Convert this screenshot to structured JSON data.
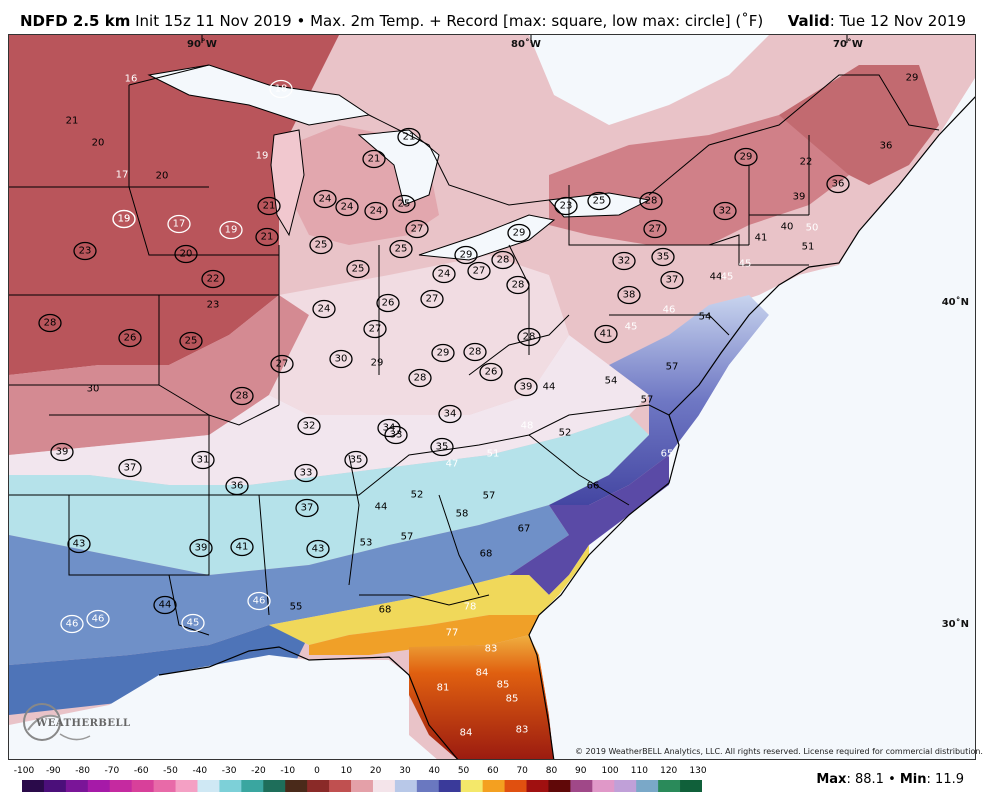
{
  "header": {
    "product": "NDFD 2.5 km",
    "init": "Init 15z 11 Nov 2019",
    "bullet": "•",
    "field": "Max. 2m Temp. + Record [max: square, low max: circle] (˚F)",
    "valid_label": "Valid",
    "valid_value": ": Tue 12 Nov 2019"
  },
  "map": {
    "lon_labels": [
      "90˚W",
      "80˚W",
      "70˚W"
    ],
    "lat_labels": [
      "40˚N",
      "30˚N"
    ],
    "copyright": "© 2019 WeatherBELL Analytics, LLC. All rights reserved. License required for commercial distribution.",
    "logo": "WEATHERBELL",
    "stations": [
      {
        "v": "16",
        "ring": false,
        "white": true
      },
      {
        "v": "18",
        "ring": true,
        "white": true
      },
      {
        "v": "21",
        "ring": false,
        "white": false
      },
      {
        "v": "20",
        "ring": false,
        "white": false
      },
      {
        "v": "17",
        "ring": false,
        "white": true
      },
      {
        "v": "20",
        "ring": false,
        "white": false
      },
      {
        "v": "19",
        "ring": true,
        "white": true
      },
      {
        "v": "17",
        "ring": true,
        "white": true
      },
      {
        "v": "19",
        "ring": true,
        "white": true
      },
      {
        "v": "19",
        "ring": true,
        "white": true
      },
      {
        "v": "21",
        "ring": true,
        "white": false
      },
      {
        "v": "21",
        "ring": true,
        "white": false
      },
      {
        "v": "19",
        "ring": false,
        "white": true
      },
      {
        "v": "21",
        "ring": true,
        "white": false
      },
      {
        "v": "21",
        "ring": true,
        "white": false
      },
      {
        "v": "23",
        "ring": true,
        "white": false
      },
      {
        "v": "20",
        "ring": true,
        "white": false
      },
      {
        "v": "22",
        "ring": true,
        "white": false
      },
      {
        "v": "23",
        "ring": false,
        "white": false
      },
      {
        "v": "24",
        "ring": true,
        "white": false
      },
      {
        "v": "24",
        "ring": true,
        "white": false
      },
      {
        "v": "24",
        "ring": true,
        "white": false
      },
      {
        "v": "25",
        "ring": true,
        "white": false
      },
      {
        "v": "27",
        "ring": true,
        "white": false
      },
      {
        "v": "25",
        "ring": true,
        "white": false
      },
      {
        "v": "25",
        "ring": true,
        "white": false
      },
      {
        "v": "25",
        "ring": true,
        "white": false
      },
      {
        "v": "24",
        "ring": true,
        "white": false
      },
      {
        "v": "29",
        "ring": true,
        "white": false
      },
      {
        "v": "27",
        "ring": true,
        "white": false
      },
      {
        "v": "28",
        "ring": true,
        "white": false
      },
      {
        "v": "29",
        "ring": true,
        "white": false
      },
      {
        "v": "23",
        "ring": true,
        "white": false
      },
      {
        "v": "25",
        "ring": true,
        "white": false
      },
      {
        "v": "28",
        "ring": true,
        "white": false
      },
      {
        "v": "27",
        "ring": true,
        "white": false
      },
      {
        "v": "29",
        "ring": true,
        "white": false
      },
      {
        "v": "32",
        "ring": true,
        "white": false
      },
      {
        "v": "22",
        "ring": false,
        "white": false
      },
      {
        "v": "29",
        "ring": false,
        "white": false
      },
      {
        "v": "36",
        "ring": false,
        "white": false
      },
      {
        "v": "39",
        "ring": false,
        "white": false
      },
      {
        "v": "36",
        "ring": true,
        "white": false
      },
      {
        "v": "40",
        "ring": false,
        "white": false
      },
      {
        "v": "41",
        "ring": false,
        "white": false
      },
      {
        "v": "50",
        "ring": false,
        "white": true
      },
      {
        "v": "51",
        "ring": false,
        "white": false
      },
      {
        "v": "32",
        "ring": true,
        "white": false
      },
      {
        "v": "35",
        "ring": true,
        "white": false
      },
      {
        "v": "37",
        "ring": true,
        "white": false
      },
      {
        "v": "44",
        "ring": false,
        "white": false
      },
      {
        "v": "45",
        "ring": false,
        "white": true
      },
      {
        "v": "45",
        "ring": false,
        "white": true
      },
      {
        "v": "38",
        "ring": true,
        "white": false
      },
      {
        "v": "28",
        "ring": true,
        "white": false
      },
      {
        "v": "28",
        "ring": true,
        "white": false
      },
      {
        "v": "26",
        "ring": true,
        "white": false
      },
      {
        "v": "25",
        "ring": true,
        "white": false
      },
      {
        "v": "24",
        "ring": true,
        "white": false
      },
      {
        "v": "26",
        "ring": true,
        "white": false
      },
      {
        "v": "27",
        "ring": true,
        "white": false
      },
      {
        "v": "27",
        "ring": true,
        "white": false
      },
      {
        "v": "28",
        "ring": true,
        "white": false
      },
      {
        "v": "41",
        "ring": true,
        "white": false
      },
      {
        "v": "45",
        "ring": false,
        "white": true
      },
      {
        "v": "46",
        "ring": false,
        "white": true
      },
      {
        "v": "54",
        "ring": false,
        "white": false
      },
      {
        "v": "27",
        "ring": true,
        "white": false
      },
      {
        "v": "30",
        "ring": true,
        "white": false
      },
      {
        "v": "29",
        "ring": false,
        "white": false
      },
      {
        "v": "28",
        "ring": true,
        "white": false
      },
      {
        "v": "29",
        "ring": true,
        "white": false
      },
      {
        "v": "28",
        "ring": true,
        "white": false
      },
      {
        "v": "26",
        "ring": true,
        "white": false
      },
      {
        "v": "39",
        "ring": true,
        "white": false
      },
      {
        "v": "44",
        "ring": false,
        "white": false
      },
      {
        "v": "54",
        "ring": false,
        "white": false
      },
      {
        "v": "57",
        "ring": false,
        "white": false
      },
      {
        "v": "57",
        "ring": false,
        "white": false
      },
      {
        "v": "30",
        "ring": false,
        "white": false
      },
      {
        "v": "28",
        "ring": true,
        "white": false
      },
      {
        "v": "32",
        "ring": true,
        "white": false
      },
      {
        "v": "34",
        "ring": true,
        "white": false
      },
      {
        "v": "33",
        "ring": true,
        "white": false
      },
      {
        "v": "34",
        "ring": true,
        "white": false
      },
      {
        "v": "35",
        "ring": true,
        "white": false
      },
      {
        "v": "48",
        "ring": false,
        "white": true
      },
      {
        "v": "52",
        "ring": false,
        "white": false
      },
      {
        "v": "51",
        "ring": false,
        "white": true
      },
      {
        "v": "47",
        "ring": false,
        "white": true
      },
      {
        "v": "65",
        "ring": false,
        "white": true
      },
      {
        "v": "39",
        "ring": true,
        "white": false
      },
      {
        "v": "37",
        "ring": true,
        "white": false
      },
      {
        "v": "31",
        "ring": true,
        "white": false
      },
      {
        "v": "33",
        "ring": true,
        "white": false
      },
      {
        "v": "35",
        "ring": true,
        "white": false
      },
      {
        "v": "36",
        "ring": true,
        "white": false
      },
      {
        "v": "37",
        "ring": true,
        "white": false
      },
      {
        "v": "44",
        "ring": false,
        "white": false
      },
      {
        "v": "52",
        "ring": false,
        "white": false
      },
      {
        "v": "57",
        "ring": false,
        "white": false
      },
      {
        "v": "58",
        "ring": false,
        "white": false
      },
      {
        "v": "66",
        "ring": false,
        "white": false
      },
      {
        "v": "57",
        "ring": false,
        "white": false
      },
      {
        "v": "67",
        "ring": false,
        "white": false
      },
      {
        "v": "43",
        "ring": true,
        "white": false
      },
      {
        "v": "39",
        "ring": true,
        "white": false
      },
      {
        "v": "41",
        "ring": true,
        "white": false
      },
      {
        "v": "43",
        "ring": true,
        "white": false
      },
      {
        "v": "53",
        "ring": false,
        "white": false
      },
      {
        "v": "68",
        "ring": false,
        "white": false
      },
      {
        "v": "44",
        "ring": true,
        "white": false
      },
      {
        "v": "46",
        "ring": true,
        "white": true
      },
      {
        "v": "55",
        "ring": false,
        "white": false
      },
      {
        "v": "68",
        "ring": false,
        "white": false
      },
      {
        "v": "78",
        "ring": false,
        "white": true
      },
      {
        "v": "46",
        "ring": true,
        "white": true
      },
      {
        "v": "46",
        "ring": true,
        "white": true
      },
      {
        "v": "45",
        "ring": true,
        "white": true
      },
      {
        "v": "77",
        "ring": false,
        "white": true
      },
      {
        "v": "83",
        "ring": false,
        "white": true
      },
      {
        "v": "84",
        "ring": false,
        "white": true
      },
      {
        "v": "85",
        "ring": false,
        "white": true
      },
      {
        "v": "85",
        "ring": false,
        "white": true
      },
      {
        "v": "81",
        "ring": false,
        "white": true
      },
      {
        "v": "83",
        "ring": false,
        "white": true
      },
      {
        "v": "84",
        "ring": false,
        "white": true
      }
    ]
  },
  "colorbar": {
    "ticks": [
      "-100",
      "-90",
      "-80",
      "-70",
      "-60",
      "-50",
      "-40",
      "-30",
      "-20",
      "-10",
      "0",
      "10",
      "20",
      "30",
      "40",
      "50",
      "60",
      "70",
      "80",
      "90",
      "100",
      "110",
      "120",
      "130"
    ],
    "colors": [
      "#2a0a4a",
      "#4b0f7a",
      "#7a1598",
      "#a61aa8",
      "#c52aa0",
      "#d8409a",
      "#e86aa8",
      "#f4a0c4",
      "#cfe8f4",
      "#7dd0d8",
      "#3aa6a0",
      "#1e6e5a",
      "#4a2a1a",
      "#8a2a28",
      "#c05050",
      "#e4a0a8",
      "#f4e4ea",
      "#b8c8e8",
      "#6a78c0",
      "#3a3a9a",
      "#f4e86a",
      "#f4a020",
      "#e05010",
      "#a01010",
      "#600808",
      "#a04888",
      "#e098c8",
      "#c0a0d8",
      "#7aa8c8",
      "#2a8a5a",
      "#10603a"
    ],
    "stats_max_label": "Max",
    "stats_max": ": 88.1",
    "stats_min_label": "Min",
    "stats_min": ": 11.9",
    "bullet": "•"
  }
}
